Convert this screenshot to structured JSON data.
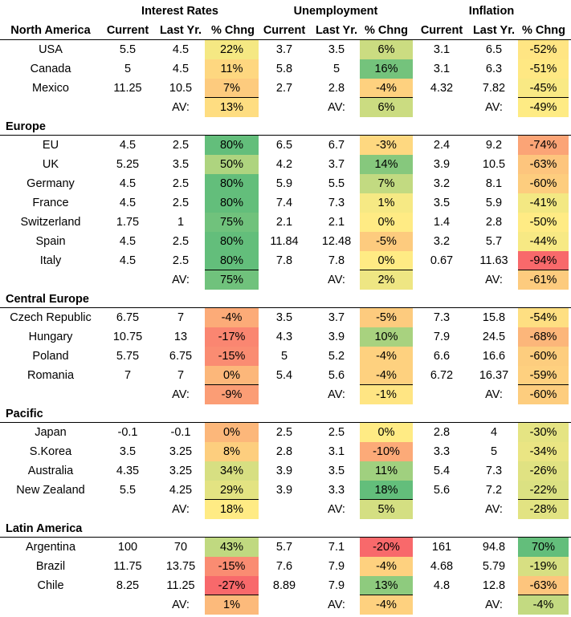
{
  "chart_data": {
    "type": "table",
    "group_headers": [
      "Interest Rates",
      "Unemployment",
      "Inflation"
    ],
    "column_labels": [
      "Current",
      "Last Yr.",
      "% Chng",
      "Current",
      "Last Yr.",
      "% Chng",
      "Current",
      "Last Yr.",
      "% Chng"
    ],
    "avg_label": "AV:",
    "regions": [
      {
        "name": "North America",
        "rows": [
          {
            "country": "USA",
            "values": [
              "5.5",
              "4.5",
              "22%",
              "3.7",
              "3.5",
              "6%",
              "3.1",
              "6.5",
              "-52%"
            ]
          },
          {
            "country": "Canada",
            "values": [
              "5",
              "4.5",
              "11%",
              "5.8",
              "5",
              "16%",
              "3.1",
              "6.3",
              "-51%"
            ]
          },
          {
            "country": "Mexico",
            "values": [
              "11.25",
              "10.5",
              "7%",
              "2.7",
              "2.8",
              "-4%",
              "4.32",
              "7.82",
              "-45%"
            ]
          }
        ],
        "averages": [
          "13%",
          "6%",
          "-49%"
        ]
      },
      {
        "name": "Europe",
        "rows": [
          {
            "country": "EU",
            "values": [
              "4.5",
              "2.5",
              "80%",
              "6.5",
              "6.7",
              "-3%",
              "2.4",
              "9.2",
              "-74%"
            ]
          },
          {
            "country": "UK",
            "values": [
              "5.25",
              "3.5",
              "50%",
              "4.2",
              "3.7",
              "14%",
              "3.9",
              "10.5",
              "-63%"
            ]
          },
          {
            "country": "Germany",
            "values": [
              "4.5",
              "2.5",
              "80%",
              "5.9",
              "5.5",
              "7%",
              "3.2",
              "8.1",
              "-60%"
            ]
          },
          {
            "country": "France",
            "values": [
              "4.5",
              "2.5",
              "80%",
              "7.4",
              "7.3",
              "1%",
              "3.5",
              "5.9",
              "-41%"
            ]
          },
          {
            "country": "Switzerland",
            "values": [
              "1.75",
              "1",
              "75%",
              "2.1",
              "2.1",
              "0%",
              "1.4",
              "2.8",
              "-50%"
            ]
          },
          {
            "country": "Spain",
            "values": [
              "4.5",
              "2.5",
              "80%",
              "11.84",
              "12.48",
              "-5%",
              "3.2",
              "5.7",
              "-44%"
            ]
          },
          {
            "country": "Italy",
            "values": [
              "4.5",
              "2.5",
              "80%",
              "7.8",
              "7.8",
              "0%",
              "0.67",
              "11.63",
              "-94%"
            ]
          }
        ],
        "averages": [
          "75%",
          "2%",
          "-61%"
        ]
      },
      {
        "name": "Central Europe",
        "rows": [
          {
            "country": "Czech Republic",
            "values": [
              "6.75",
              "7",
              "-4%",
              "3.5",
              "3.7",
              "-5%",
              "7.3",
              "15.8",
              "-54%"
            ]
          },
          {
            "country": "Hungary",
            "values": [
              "10.75",
              "13",
              "-17%",
              "4.3",
              "3.9",
              "10%",
              "7.9",
              "24.5",
              "-68%"
            ]
          },
          {
            "country": "Poland",
            "values": [
              "5.75",
              "6.75",
              "-15%",
              "5",
              "5.2",
              "-4%",
              "6.6",
              "16.6",
              "-60%"
            ]
          },
          {
            "country": "Romania",
            "values": [
              "7",
              "7",
              "0%",
              "5.4",
              "5.6",
              "-4%",
              "6.72",
              "16.37",
              "-59%"
            ]
          }
        ],
        "averages": [
          "-9%",
          "-1%",
          "-60%"
        ]
      },
      {
        "name": "Pacific",
        "rows": [
          {
            "country": "Japan",
            "values": [
              "-0.1",
              "-0.1",
              "0%",
              "2.5",
              "2.5",
              "0%",
              "2.8",
              "4",
              "-30%"
            ]
          },
          {
            "country": "S.Korea",
            "values": [
              "3.5",
              "3.25",
              "8%",
              "2.8",
              "3.1",
              "-10%",
              "3.3",
              "5",
              "-34%"
            ]
          },
          {
            "country": "Australia",
            "values": [
              "4.35",
              "3.25",
              "34%",
              "3.9",
              "3.5",
              "11%",
              "5.4",
              "7.3",
              "-26%"
            ]
          },
          {
            "country": "New Zealand",
            "values": [
              "5.5",
              "4.25",
              "29%",
              "3.9",
              "3.3",
              "18%",
              "5.6",
              "7.2",
              "-22%"
            ]
          }
        ],
        "averages": [
          "18%",
          "5%",
          "-28%"
        ]
      },
      {
        "name": "Latin America",
        "rows": [
          {
            "country": "Argentina",
            "values": [
              "100",
              "70",
              "43%",
              "5.7",
              "7.1",
              "-20%",
              "161",
              "94.8",
              "70%"
            ]
          },
          {
            "country": "Brazil",
            "values": [
              "11.75",
              "13.75",
              "-15%",
              "7.6",
              "7.9",
              "-4%",
              "4.68",
              "5.79",
              "-19%"
            ]
          },
          {
            "country": "Chile",
            "values": [
              "8.25",
              "11.25",
              "-27%",
              "8.89",
              "7.9",
              "13%",
              "4.8",
              "12.8",
              "-63%"
            ]
          }
        ],
        "averages": [
          "1%",
          "-4%",
          "-4%"
        ]
      }
    ],
    "colors": {
      "scale_low": "#f8696b",
      "scale_mid": "#ffeb84",
      "scale_high": "#63be7b",
      "rule": "#000000"
    }
  }
}
